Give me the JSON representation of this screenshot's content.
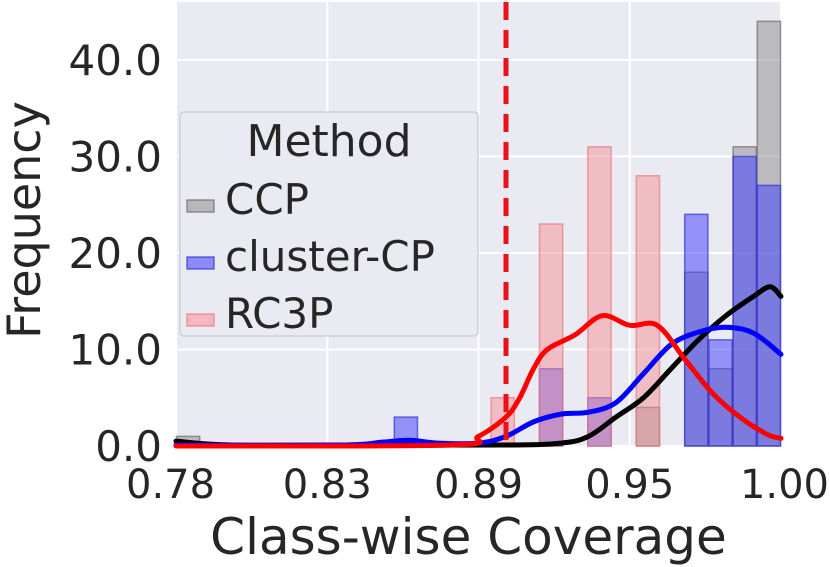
{
  "chart_data": {
    "type": "bar",
    "xlabel": "Class-wise Coverage",
    "ylabel": "Frequency",
    "xlim": [
      0.78,
      1.0
    ],
    "ylim": [
      0,
      46
    ],
    "x_ticks": [
      {
        "value": 0.78,
        "label": "0.78"
      },
      {
        "value": 0.835,
        "label": "0.83"
      },
      {
        "value": 0.89,
        "label": "0.89"
      },
      {
        "value": 0.945,
        "label": "0.95"
      },
      {
        "value": 1.0,
        "label": "1.00"
      }
    ],
    "y_ticks": [
      {
        "value": 0,
        "label": "0.0"
      },
      {
        "value": 10,
        "label": "10.0"
      },
      {
        "value": 20,
        "label": "20.0"
      },
      {
        "value": 30,
        "label": "30.0"
      },
      {
        "value": 40,
        "label": "40.0"
      }
    ],
    "grid": true,
    "reference_line": {
      "x": 0.9,
      "color": "#e8121b",
      "style": "dashed"
    },
    "legend": {
      "title": "Method",
      "position": "center-left"
    },
    "bin_width": 0.0088,
    "series": [
      {
        "name": "CCP",
        "color": "#3a3a3a",
        "bins": [
          {
            "x": 0.7844,
            "count": 1
          },
          {
            "x": 0.9516,
            "count": 4
          },
          {
            "x": 0.9692,
            "count": 18
          },
          {
            "x": 0.978,
            "count": 8
          },
          {
            "x": 0.9868,
            "count": 31
          },
          {
            "x": 0.9956,
            "count": 44
          }
        ],
        "kde": [
          [
            0.78,
            0.5
          ],
          [
            0.8,
            0.1
          ],
          [
            0.85,
            0.1
          ],
          [
            0.9,
            0.1
          ],
          [
            0.92,
            0.3
          ],
          [
            0.93,
            1
          ],
          [
            0.94,
            3
          ],
          [
            0.95,
            5
          ],
          [
            0.96,
            8
          ],
          [
            0.97,
            11
          ],
          [
            0.98,
            13.5
          ],
          [
            0.99,
            15.5
          ],
          [
            0.996,
            16.5
          ],
          [
            1.0,
            15.5
          ]
        ]
      },
      {
        "name": "cluster-CP",
        "color": "#2424ff",
        "bins": [
          {
            "x": 0.8636,
            "count": 3
          },
          {
            "x": 0.9164,
            "count": 8
          },
          {
            "x": 0.934,
            "count": 5
          },
          {
            "x": 0.9692,
            "count": 24
          },
          {
            "x": 0.978,
            "count": 11
          },
          {
            "x": 0.9868,
            "count": 30
          },
          {
            "x": 0.9956,
            "count": 27
          }
        ],
        "kde": [
          [
            0.78,
            0.1
          ],
          [
            0.84,
            0.1
          ],
          [
            0.855,
            0.4
          ],
          [
            0.865,
            0.6
          ],
          [
            0.875,
            0.3
          ],
          [
            0.89,
            0.3
          ],
          [
            0.9,
            1
          ],
          [
            0.91,
            2.5
          ],
          [
            0.92,
            3.3
          ],
          [
            0.93,
            3.5
          ],
          [
            0.94,
            4.5
          ],
          [
            0.95,
            7.5
          ],
          [
            0.96,
            10.5
          ],
          [
            0.97,
            11.8
          ],
          [
            0.98,
            12.3
          ],
          [
            0.99,
            11.7
          ],
          [
            1.0,
            9.5
          ]
        ]
      },
      {
        "name": "RC3P",
        "color": "#f08080",
        "bins": [
          {
            "x": 0.8988,
            "count": 5
          },
          {
            "x": 0.9164,
            "count": 23
          },
          {
            "x": 0.934,
            "count": 31
          },
          {
            "x": 0.9516,
            "count": 28
          }
        ],
        "kde": [
          [
            0.78,
            0
          ],
          [
            0.88,
            0.1
          ],
          [
            0.89,
            1
          ],
          [
            0.9,
            3
          ],
          [
            0.905,
            5
          ],
          [
            0.91,
            8
          ],
          [
            0.915,
            10
          ],
          [
            0.925,
            11.5
          ],
          [
            0.935,
            13.5
          ],
          [
            0.945,
            12.5
          ],
          [
            0.955,
            12.5
          ],
          [
            0.965,
            9
          ],
          [
            0.975,
            5.5
          ],
          [
            0.985,
            3
          ],
          [
            0.995,
            1.2
          ],
          [
            1.0,
            0.8
          ]
        ]
      }
    ]
  }
}
